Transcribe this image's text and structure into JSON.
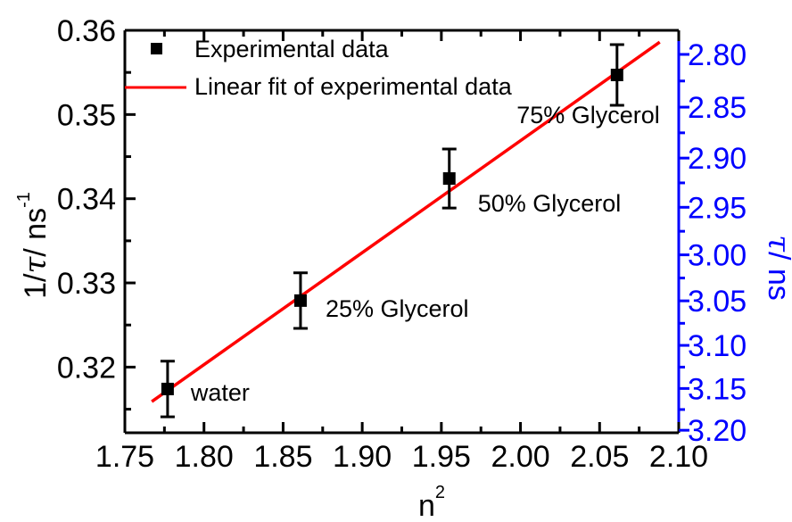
{
  "chart_data": {
    "type": "scatter",
    "x": [
      1.777,
      1.861,
      1.955,
      2.061
    ],
    "x_labels": [
      "water",
      "25% Glycerol",
      "50% Glycerol",
      "75% Glycerol"
    ],
    "series": [
      {
        "name": "Experimental data",
        "kind": "points-with-error-bars",
        "y": [
          0.3174,
          0.3279,
          0.3424,
          0.3547
        ],
        "yerr": [
          0.0033,
          0.0033,
          0.0035,
          0.0036
        ],
        "color": "#000000"
      },
      {
        "name": "Linear fit of experimental data",
        "kind": "line",
        "x": [
          1.767,
          2.088
        ],
        "y": [
          0.3159,
          0.3586
        ],
        "color": "#ff0000"
      }
    ],
    "xlabel_base": "n",
    "xlabel_sup": "2",
    "ylabel_base": "1/",
    "ylabel_tau": "τ",
    "ylabel_unit": "/ ns",
    "ylabel_sup": "-1",
    "y2label_tau": "τ",
    "y2label_unit": "/ ns",
    "xlim": [
      1.75,
      2.1
    ],
    "ylim": [
      0.3122,
      0.36
    ],
    "xticks": [
      "1.75",
      "1.80",
      "1.85",
      "1.90",
      "1.95",
      "2.00",
      "2.05",
      "2.10"
    ],
    "yticks": [
      "0.32",
      "0.33",
      "0.34",
      "0.35",
      "0.36"
    ],
    "y2ticks": [
      "2.80",
      "2.85",
      "2.90",
      "2.95",
      "3.00",
      "3.05",
      "3.10",
      "3.15",
      "3.20"
    ],
    "y2_tick_values": [
      2.8,
      2.85,
      2.9,
      2.95,
      3.0,
      3.05,
      3.1,
      3.15,
      3.2
    ],
    "y2_scale": "reciprocal",
    "y2_color": "#0000ff",
    "grid": false,
    "legend_position": "top-left"
  }
}
